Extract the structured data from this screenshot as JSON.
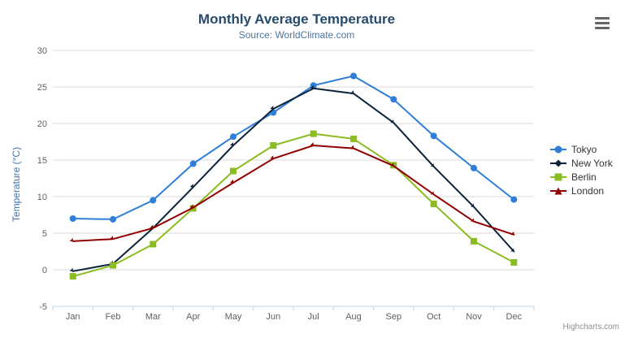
{
  "credit": "Highcharts.com",
  "icons": {
    "export_menu": "hamburger-icon"
  },
  "chart_data": {
    "type": "line",
    "title": "Monthly Average Temperature",
    "subtitle": "Source: WorldClimate.com",
    "categories": [
      "Jan",
      "Feb",
      "Mar",
      "Apr",
      "May",
      "Jun",
      "Jul",
      "Aug",
      "Sep",
      "Oct",
      "Nov",
      "Dec"
    ],
    "xlabel": "",
    "ylabel": "Temperature (°C)",
    "ylim": [
      -5,
      30
    ],
    "ytick_step": 5,
    "grid": true,
    "legend_position": "right",
    "colors": {
      "grid": "#d8d8d8",
      "axis_line": "#c0d0e0",
      "axis_label": "#606060",
      "title": "#274b6d",
      "subtitle": "#4d759e",
      "y_axis_title": "#4572a7",
      "legend_text": "#333333"
    },
    "series": [
      {
        "name": "Tokyo",
        "color": "#2f7ed8",
        "marker": "circle",
        "values": [
          7.0,
          6.9,
          9.5,
          14.5,
          18.2,
          21.5,
          25.2,
          26.5,
          23.3,
          18.3,
          13.9,
          9.6
        ]
      },
      {
        "name": "New York",
        "color": "#0d233a",
        "marker": "diamond",
        "values": [
          -0.2,
          0.8,
          5.7,
          11.3,
          17.0,
          22.0,
          24.8,
          24.1,
          20.1,
          14.1,
          8.6,
          2.5
        ]
      },
      {
        "name": "Berlin",
        "color": "#8bbc21",
        "marker": "square",
        "values": [
          -0.9,
          0.6,
          3.5,
          8.4,
          13.5,
          17.0,
          18.6,
          17.9,
          14.3,
          9.0,
          3.9,
          1.0
        ]
      },
      {
        "name": "London",
        "color": "#910000",
        "marker": "triangle",
        "values": [
          3.9,
          4.2,
          5.7,
          8.5,
          11.9,
          15.2,
          17.0,
          16.6,
          14.2,
          10.3,
          6.6,
          4.8
        ]
      }
    ]
  }
}
